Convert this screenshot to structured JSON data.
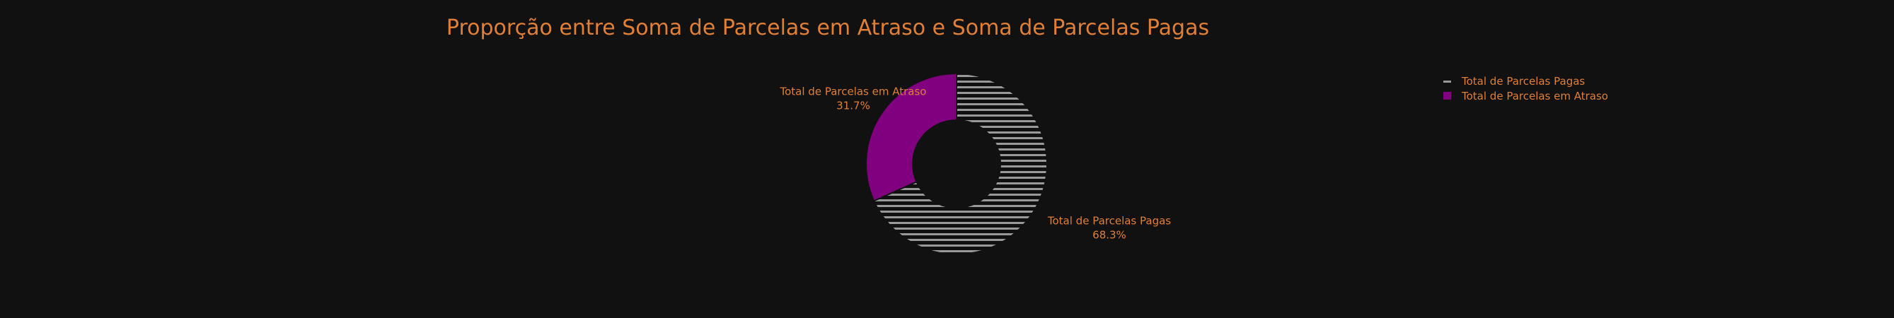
{
  "chart_data": {
    "type": "pie",
    "title": "Proporção entre Soma de Parcelas em Atraso e Soma de Parcelas Pagas",
    "slices": [
      {
        "name": "Total de Parcelas Pagas",
        "value": 68.3,
        "percent_label": "68.3%",
        "color": "#999999",
        "pattern": "horizontal-lines"
      },
      {
        "name": "Total de Parcelas em Atraso",
        "value": 31.7,
        "percent_label": "31.7%",
        "color": "#800080",
        "pattern": "solid"
      }
    ],
    "hole": true,
    "direction": "clockwise",
    "legend_position": "top-right"
  },
  "colors": {
    "background": "#111111",
    "text": "#e07f35"
  }
}
